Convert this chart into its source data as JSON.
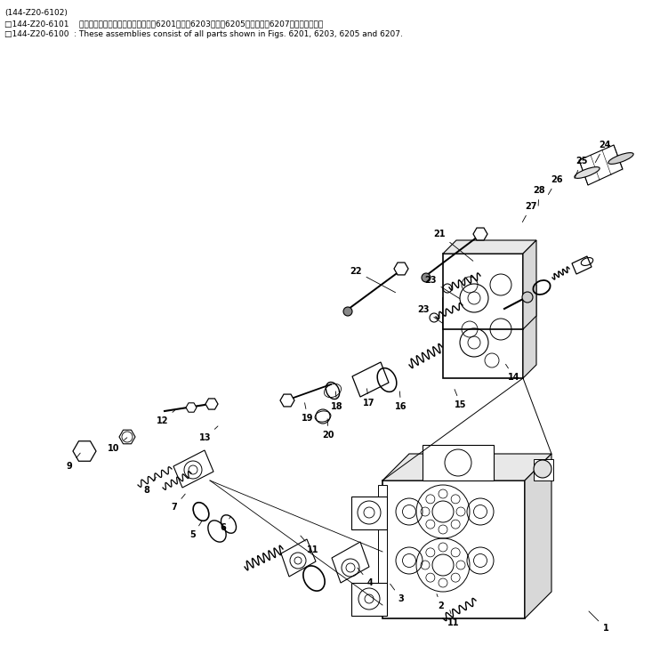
{
  "background_color": "#ffffff",
  "fig_width": 7.33,
  "fig_height": 7.26,
  "header_lines": [
    "(144-Z20-6102)",
    "□144-Z20-6101    これらのアセンブリの構成部品は第6201図，第6203図，第6205図および第6207図を含みます．",
    "□144-Z20-6100  : These assemblies consist of all parts shown in Figs. 6201, 6203, 6205 and 6207."
  ],
  "label_configs": [
    [
      "1",
      681,
      706,
      660,
      685
    ],
    [
      "2",
      496,
      681,
      490,
      665
    ],
    [
      "3",
      451,
      673,
      437,
      654
    ],
    [
      "4",
      416,
      655,
      400,
      636
    ],
    [
      "5",
      217,
      601,
      228,
      584
    ],
    [
      "6",
      251,
      593,
      261,
      578
    ],
    [
      "7",
      196,
      570,
      210,
      553
    ],
    [
      "8",
      165,
      551,
      177,
      534
    ],
    [
      "9",
      78,
      524,
      92,
      507
    ],
    [
      "10",
      128,
      504,
      145,
      490
    ],
    [
      "11",
      352,
      618,
      336,
      600
    ],
    [
      "11",
      510,
      700,
      505,
      683
    ],
    [
      "12",
      183,
      473,
      200,
      458
    ],
    [
      "13",
      231,
      492,
      247,
      477
    ],
    [
      "14",
      578,
      424,
      567,
      407
    ],
    [
      "15",
      518,
      455,
      510,
      435
    ],
    [
      "16",
      451,
      457,
      449,
      437
    ],
    [
      "17",
      415,
      453,
      412,
      434
    ],
    [
      "18",
      379,
      457,
      377,
      437
    ],
    [
      "19",
      346,
      470,
      342,
      450
    ],
    [
      "20",
      369,
      489,
      368,
      468
    ],
    [
      "21",
      494,
      263,
      534,
      295
    ],
    [
      "22",
      400,
      305,
      447,
      330
    ],
    [
      "23",
      484,
      315,
      519,
      337
    ],
    [
      "23",
      476,
      348,
      500,
      365
    ],
    [
      "24",
      680,
      163,
      668,
      185
    ],
    [
      "25",
      654,
      181,
      645,
      203
    ],
    [
      "26",
      626,
      202,
      615,
      221
    ],
    [
      "27",
      597,
      232,
      586,
      252
    ],
    [
      "28",
      606,
      214,
      605,
      234
    ]
  ]
}
